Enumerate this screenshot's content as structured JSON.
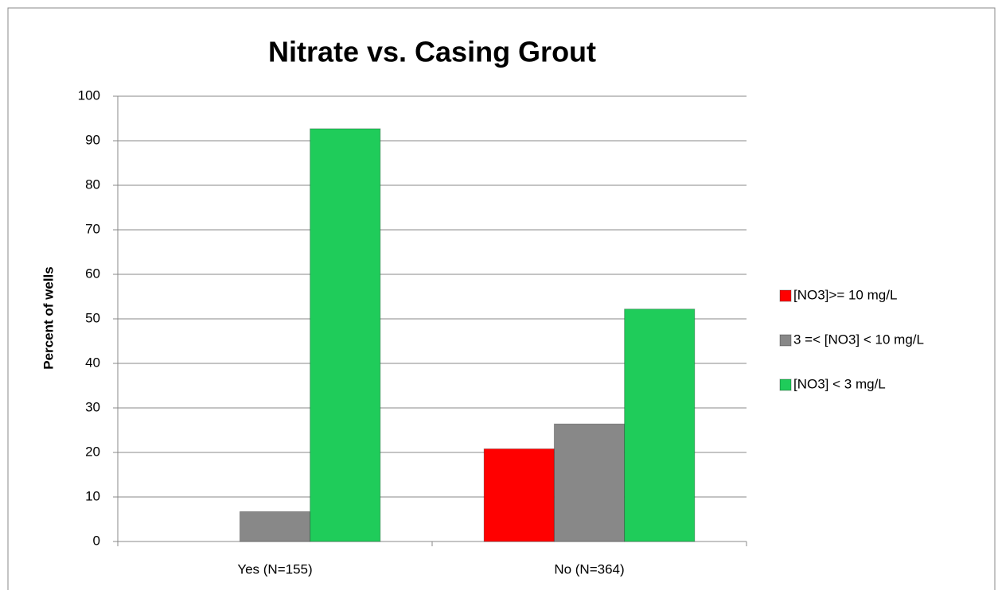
{
  "chart_data": {
    "type": "bar",
    "title": "Nitrate vs. Casing Grout",
    "y_label": "Percent of wells",
    "categories": [
      "Yes (N=155)",
      "No (N=364)"
    ],
    "series": [
      {
        "name": "[NO3]>= 10 mg/L",
        "color": "#ff0000",
        "values": [
          0,
          20.8
        ]
      },
      {
        "name": "3 =< [NO3] < 10 mg/L",
        "color": "#888888",
        "values": [
          6.7,
          26.4
        ]
      },
      {
        "name": "[NO3] < 3 mg/L",
        "color": "#1fcc5a",
        "values": [
          92.7,
          52.2
        ]
      }
    ],
    "ylim": [
      0,
      100
    ],
    "yticks": [
      0,
      10,
      20,
      30,
      40,
      50,
      60,
      70,
      80,
      90,
      100
    ],
    "grid": true,
    "legend": "right"
  }
}
